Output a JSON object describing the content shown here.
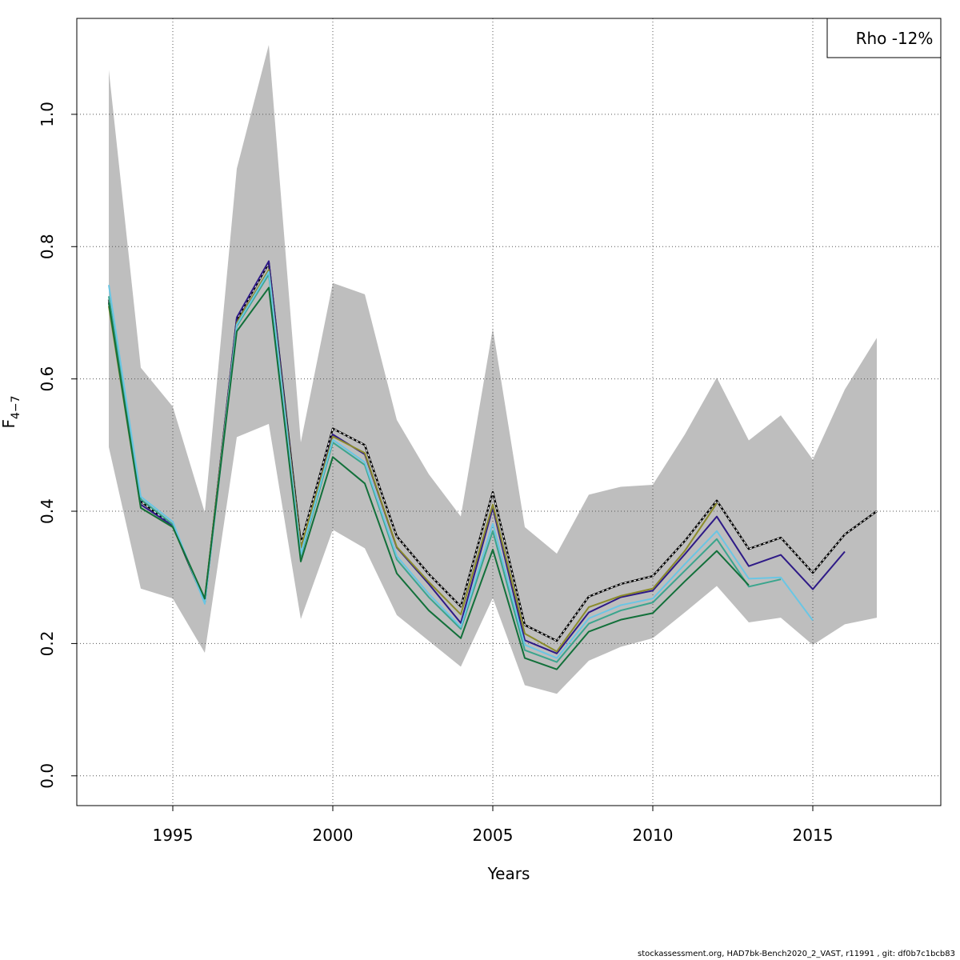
{
  "chart_data": {
    "type": "line",
    "xlabel": "Years",
    "ylabel_main": "F",
    "ylabel_sub": "4−7",
    "xlim": [
      1992,
      2019
    ],
    "ylim": [
      -0.045,
      1.145
    ],
    "x_ticks": [
      1995,
      2000,
      2005,
      2010,
      2015
    ],
    "y_ticks": [
      0.0,
      0.2,
      0.4,
      0.6,
      0.8,
      1.0
    ],
    "y_tick_labels": [
      "0.0",
      "0.2",
      "0.4",
      "0.6",
      "0.8",
      "1.0"
    ],
    "grid": true,
    "legend": {
      "text": "Rho -12%",
      "position": "top-right"
    },
    "confidence_band": {
      "color": "#bebebe",
      "x": [
        1993,
        1994,
        1995,
        1996,
        1997,
        1998,
        1999,
        2000,
        2001,
        2002,
        2003,
        2004,
        2005,
        2006,
        2007,
        2008,
        2009,
        2010,
        2011,
        2012,
        2013,
        2014,
        2015,
        2016,
        2017
      ],
      "upper": [
        1.067,
        0.617,
        0.558,
        0.398,
        0.918,
        1.105,
        0.504,
        0.745,
        0.728,
        0.538,
        0.456,
        0.392,
        0.676,
        0.376,
        0.336,
        0.425,
        0.437,
        0.44,
        0.516,
        0.602,
        0.507,
        0.545,
        0.478,
        0.584,
        0.662
      ],
      "lower": [
        0.497,
        0.283,
        0.268,
        0.186,
        0.512,
        0.532,
        0.237,
        0.372,
        0.344,
        0.243,
        0.204,
        0.165,
        0.269,
        0.137,
        0.124,
        0.174,
        0.195,
        0.208,
        0.247,
        0.287,
        0.232,
        0.239,
        0.198,
        0.229,
        0.239
      ]
    },
    "series": [
      {
        "color": "#000000",
        "dashed": true,
        "x": [
          1993,
          1994,
          1995,
          1996,
          1997,
          1998,
          1999,
          2000,
          2001,
          2002,
          2003,
          2004,
          2005,
          2006,
          2007,
          2008,
          2009,
          2010,
          2011,
          2012,
          2013,
          2014,
          2015,
          2016,
          2017
        ],
        "values": [
          0.72,
          0.415,
          0.378,
          0.263,
          0.69,
          0.775,
          0.351,
          0.525,
          0.5,
          0.362,
          0.305,
          0.256,
          0.429,
          0.228,
          0.204,
          0.271,
          0.29,
          0.302,
          0.355,
          0.416,
          0.343,
          0.36,
          0.307,
          0.365,
          0.4
        ]
      },
      {
        "color": "#2e1a87",
        "dashed": false,
        "x": [
          1993,
          1994,
          1995,
          1996,
          1997,
          1998,
          1999,
          2000,
          2001,
          2002,
          2003,
          2004,
          2005,
          2006,
          2007,
          2008,
          2009,
          2010,
          2011,
          2012,
          2013,
          2014,
          2015,
          2016
        ],
        "values": [
          0.715,
          0.41,
          0.378,
          0.265,
          0.693,
          0.778,
          0.345,
          0.516,
          0.486,
          0.345,
          0.29,
          0.231,
          0.405,
          0.205,
          0.185,
          0.247,
          0.27,
          0.28,
          0.335,
          0.392,
          0.317,
          0.334,
          0.282,
          0.339
        ]
      },
      {
        "color": "#8b8b2a",
        "dashed": false,
        "x": [
          1993,
          1994,
          1995,
          1996,
          1997,
          1998,
          1999,
          2000,
          2001,
          2002,
          2003,
          2004,
          2005,
          2006,
          2007,
          2008,
          2009,
          2010,
          2011,
          2012
        ],
        "values": [
          0.71,
          0.405,
          0.376,
          0.268,
          0.685,
          0.765,
          0.345,
          0.513,
          0.488,
          0.346,
          0.293,
          0.244,
          0.41,
          0.215,
          0.188,
          0.255,
          0.272,
          0.283,
          0.34,
          0.412
        ]
      },
      {
        "color": "#3aa58d",
        "dashed": false,
        "x": [
          1993,
          1994,
          1995,
          1996,
          1997,
          1998,
          1999,
          2000,
          2001,
          2002,
          2003,
          2004,
          2005,
          2006,
          2007,
          2008,
          2009,
          2010,
          2011,
          2012,
          2013,
          2014
        ],
        "values": [
          0.725,
          0.418,
          0.38,
          0.262,
          0.68,
          0.758,
          0.332,
          0.504,
          0.47,
          0.327,
          0.27,
          0.222,
          0.37,
          0.19,
          0.172,
          0.23,
          0.25,
          0.262,
          0.31,
          0.358,
          0.286,
          0.297
        ]
      },
      {
        "color": "#6ac6e4",
        "dashed": false,
        "x": [
          1993,
          1994,
          1995,
          1996,
          1997,
          1998,
          1999,
          2000,
          2001,
          2002,
          2003,
          2004,
          2005,
          2006,
          2007,
          2008,
          2009,
          2010,
          2011,
          2012,
          2013,
          2014,
          2015
        ],
        "values": [
          0.742,
          0.422,
          0.384,
          0.26,
          0.682,
          0.762,
          0.335,
          0.508,
          0.474,
          0.332,
          0.275,
          0.225,
          0.381,
          0.198,
          0.178,
          0.238,
          0.258,
          0.268,
          0.32,
          0.37,
          0.298,
          0.3,
          0.235
        ]
      },
      {
        "color": "#12703a",
        "dashed": false,
        "x": [
          1993,
          1994,
          1995,
          1996,
          1997,
          1998,
          1999,
          2000,
          2001,
          2002,
          2003,
          2004,
          2005,
          2006,
          2007,
          2008,
          2009,
          2010,
          2011,
          2012,
          2013
        ],
        "values": [
          0.715,
          0.405,
          0.376,
          0.268,
          0.672,
          0.738,
          0.324,
          0.482,
          0.442,
          0.306,
          0.25,
          0.208,
          0.342,
          0.178,
          0.161,
          0.218,
          0.236,
          0.246,
          0.294,
          0.34,
          0.288
        ]
      }
    ]
  },
  "footer": "stockassessment.org, HAD7bk-Bench2020_2_VAST, r11991 , git: df0b7c1bcb83"
}
